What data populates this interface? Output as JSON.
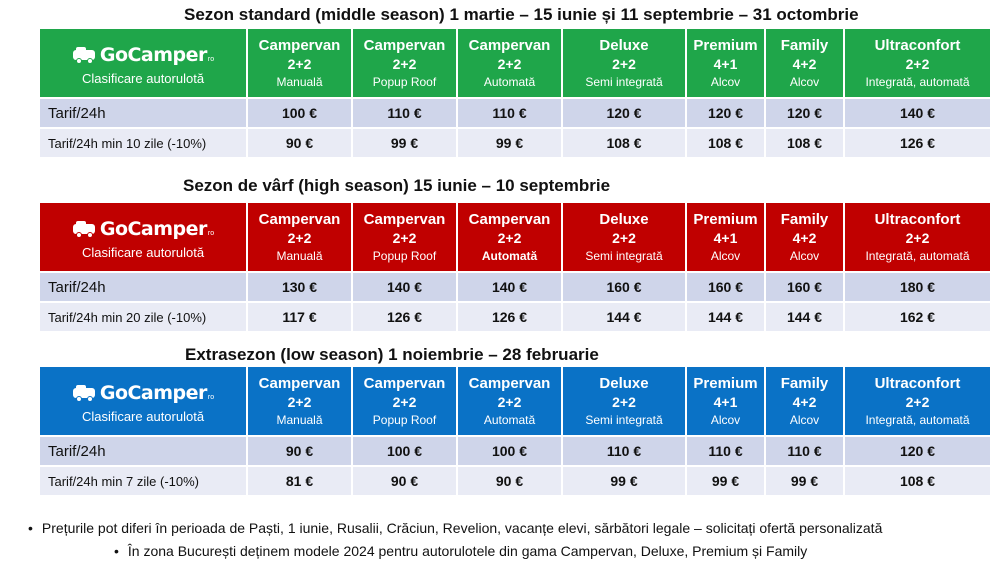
{
  "seasons": [
    {
      "title": "Sezon standard (middle season) 1 martie – 15 iunie  și 11 septembrie – 31 octombrie",
      "header_color": "#1fa64a",
      "logo_text": "GoCamper",
      "logo_suffix": "ro",
      "subtitle": "Clasificare autorulotă",
      "columns": [
        {
          "name": "Campervan",
          "config": "2+2",
          "type": "Manuală"
        },
        {
          "name": "Campervan",
          "config": "2+2",
          "type": "Popup Roof"
        },
        {
          "name": "Campervan",
          "config": "2+2",
          "type": "Automată"
        },
        {
          "name": "Deluxe",
          "config": "2+2",
          "type": "Semi integrată"
        },
        {
          "name": "Premium",
          "config": "4+1",
          "type": "Alcov"
        },
        {
          "name": "Family",
          "config": "4+2",
          "type": "Alcov"
        },
        {
          "name": "Ultraconfort",
          "config": "2+2",
          "type": "Integrată, automată"
        }
      ],
      "rows": [
        {
          "label": "Tarif/24h",
          "values": [
            "100 €",
            "110 €",
            "110 €",
            "120 €",
            "120 €",
            "120 €",
            "140 €"
          ]
        },
        {
          "label": "Tarif/24h min 10 zile (-10%)",
          "values": [
            "90 €",
            "99 €",
            "99 €",
            "108 €",
            "108 €",
            "108 €",
            "126 €"
          ]
        }
      ]
    },
    {
      "title": "Sezon de vârf (high season) 15 iunie – 10 septembrie",
      "header_color": "#c00000",
      "logo_text": "GoCamper",
      "logo_suffix": "ro",
      "subtitle": "Clasificare autorulotă",
      "columns": [
        {
          "name": "Campervan",
          "config": "2+2",
          "type": "Manuală"
        },
        {
          "name": "Campervan",
          "config": "2+2",
          "type": "Popup Roof"
        },
        {
          "name": "Campervan",
          "config": "2+2",
          "type": "Automată"
        },
        {
          "name": "Deluxe",
          "config": "2+2",
          "type": "Semi integrată"
        },
        {
          "name": "Premium",
          "config": "4+1",
          "type": "Alcov"
        },
        {
          "name": "Family",
          "config": "4+2",
          "type": "Alcov"
        },
        {
          "name": "Ultraconfort",
          "config": "2+2",
          "type": "Integrată, automată"
        }
      ],
      "rows": [
        {
          "label": "Tarif/24h",
          "values": [
            "130 €",
            "140 €",
            "140 €",
            "160 €",
            "160 €",
            "160 €",
            "180 €"
          ]
        },
        {
          "label": "Tarif/24h min 20 zile (-10%)",
          "values": [
            "117 €",
            "126 €",
            "126 €",
            "144 €",
            "144 €",
            "144 €",
            "162 €"
          ]
        }
      ]
    },
    {
      "title": "Extrasezon (low season) 1 noiembrie – 28 februarie",
      "header_color": "#0a72c6",
      "logo_text": "GoCamper",
      "logo_suffix": "ro",
      "subtitle": "Clasificare autorulotă",
      "columns": [
        {
          "name": "Campervan",
          "config": "2+2",
          "type": "Manuală"
        },
        {
          "name": "Campervan",
          "config": "2+2",
          "type": "Popup Roof"
        },
        {
          "name": "Campervan",
          "config": "2+2",
          "type": "Automată"
        },
        {
          "name": "Deluxe",
          "config": "2+2",
          "type": "Semi integrată"
        },
        {
          "name": "Premium",
          "config": "4+1",
          "type": "Alcov"
        },
        {
          "name": "Family",
          "config": "4+2",
          "type": "Alcov"
        },
        {
          "name": "Ultraconfort",
          "config": "2+2",
          "type": "Integrată, automată"
        }
      ],
      "rows": [
        {
          "label": "Tarif/24h",
          "values": [
            "90 €",
            "100 €",
            "100 €",
            "110 €",
            "110 €",
            "110 €",
            "120 €"
          ]
        },
        {
          "label": "Tarif/24h min 7 zile (-10%)",
          "values": [
            "81 €",
            "90 €",
            "90 €",
            "99 €",
            "99 €",
            "99 €",
            "108 €"
          ]
        }
      ]
    }
  ],
  "notes": [
    "Prețurile pot diferi în perioada de Paști, 1 iunie, Rusalii, Crăciun, Revelion, vacanțe elevi, sărbători legale – solicitați ofertă personalizată",
    "În zona București deținem  modele 2024 pentru autorulotele din gama Campervan, Deluxe, Premium și Family"
  ],
  "bullet": "•",
  "icon": "camper-van-icon"
}
